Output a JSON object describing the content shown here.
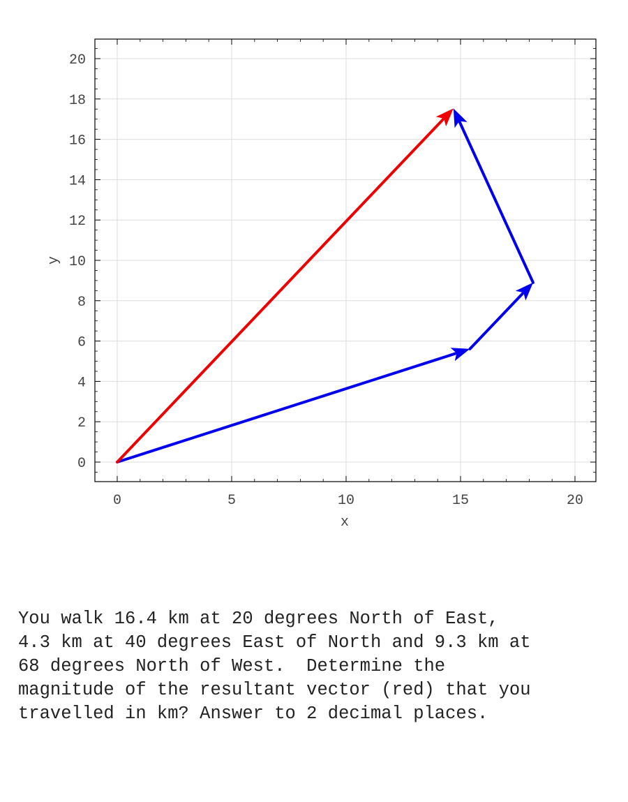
{
  "chart_data": {
    "type": "vector-diagram",
    "xlabel": "x",
    "ylabel": "y",
    "xlim": [
      -1,
      21
    ],
    "ylim": [
      -1,
      21
    ],
    "xticks": [
      0,
      5,
      10,
      15,
      20
    ],
    "yticks": [
      0,
      2,
      4,
      6,
      8,
      10,
      12,
      14,
      16,
      18,
      20
    ],
    "grid": true,
    "vectors": [
      {
        "from": [
          0,
          0
        ],
        "to": [
          15.41,
          5.61
        ],
        "color": "#0000ee"
      },
      {
        "from": [
          15.41,
          5.61
        ],
        "to": [
          18.17,
          8.9
        ],
        "color": "#0000ee"
      },
      {
        "from": [
          18.17,
          8.9
        ],
        "to": [
          14.69,
          17.53
        ],
        "color": "#0000ee"
      },
      {
        "from": [
          0,
          0
        ],
        "to": [
          14.69,
          17.53
        ],
        "color": "#ee0000"
      }
    ]
  },
  "question": {
    "lines": [
      "You walk 16.4 km at 20 degrees North of East,",
      "4.3 km at 40 degrees East of North and 9.3 km at",
      "68 degrees North of West.  Determine the",
      "magnitude of the resultant vector (red) that you",
      "travelled in km? Answer to 2 decimal places."
    ]
  }
}
